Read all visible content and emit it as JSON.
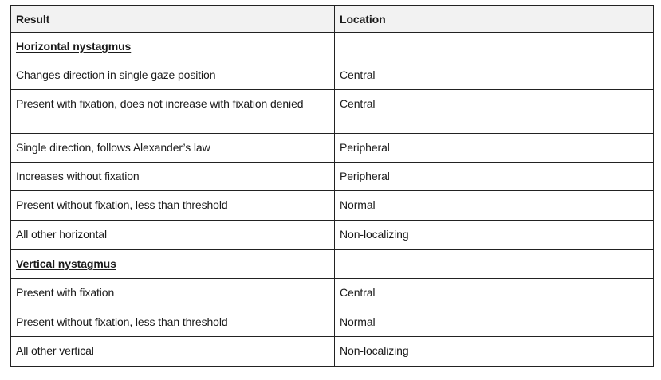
{
  "table": {
    "headers": {
      "result": "Result",
      "location": "Location"
    },
    "rows": [
      {
        "type": "section",
        "result": "Horizontal nystagmus",
        "location": ""
      },
      {
        "type": "data",
        "result": "Changes direction in single gaze position",
        "location": "Central"
      },
      {
        "type": "data",
        "result": "Present with fixation, does not increase with fixation denied",
        "location": "Central"
      },
      {
        "type": "data",
        "result": "Single direction, follows Alexander’s law",
        "location": "Peripheral"
      },
      {
        "type": "data",
        "result": "Increases without fixation",
        "location": "Peripheral"
      },
      {
        "type": "data",
        "result": "Present without fixation, less than threshold",
        "location": "Normal"
      },
      {
        "type": "data",
        "result": "All other horizontal",
        "location": "Non-localizing"
      },
      {
        "type": "section",
        "result": "Vertical nystagmus",
        "location": ""
      },
      {
        "type": "data",
        "result": "Present with fixation",
        "location": "Central"
      },
      {
        "type": "data",
        "result": "Present without fixation, less than threshold",
        "location": "Normal"
      },
      {
        "type": "data",
        "result": "All other vertical",
        "location": "Non-localizing"
      }
    ]
  }
}
